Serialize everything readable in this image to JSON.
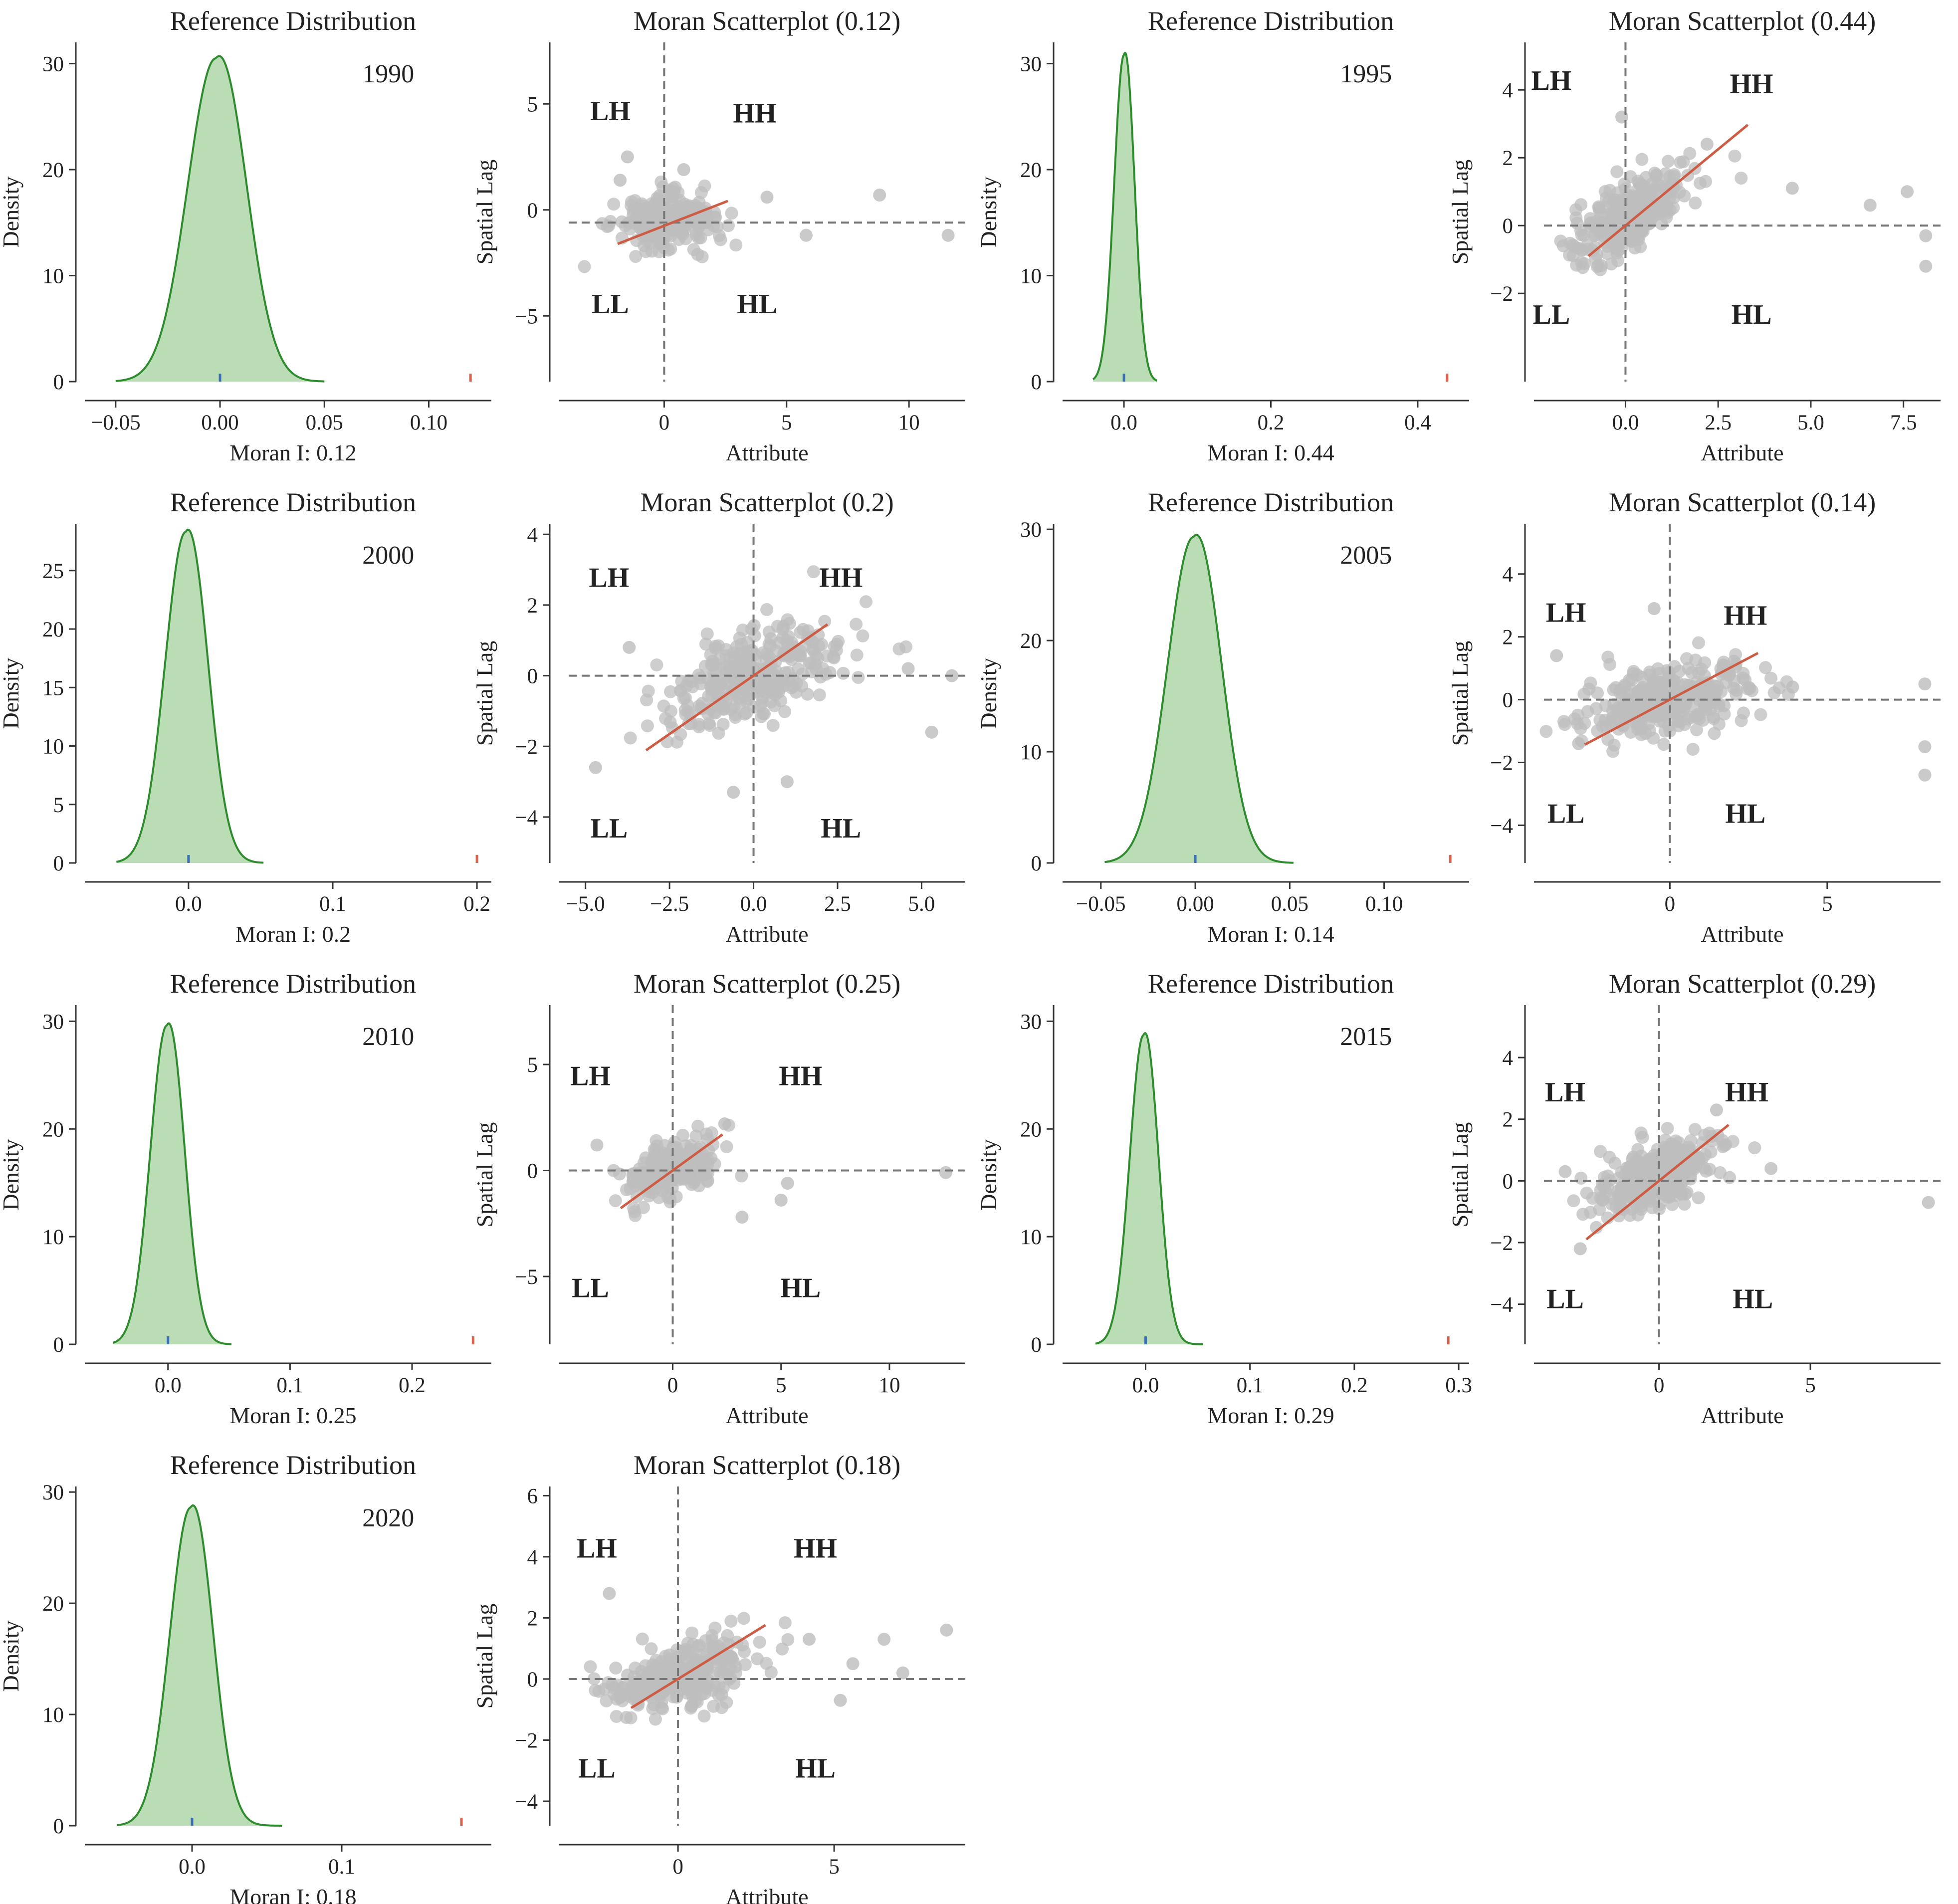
{
  "figure": {
    "colors": {
      "kde_line": "#2e8b2e",
      "kde_fill": "#a9d5a3",
      "observed_marker": "#d9634e",
      "expected_marker": "#3b6fb6",
      "scatter_point": "#bdbdbd",
      "regression_line": "#cd5c45",
      "axis": "#333333",
      "reference_line": "#777777"
    },
    "quadrant_labels": [
      "LH",
      "HH",
      "LL",
      "HL"
    ]
  },
  "chart_data": [
    {
      "type": "area",
      "panel": "reference-distribution",
      "title": "Reference Distribution",
      "year": "1990",
      "xlabel": "Moran I: 0.12",
      "ylabel": "Density",
      "xlim": [
        -0.06,
        0.13
      ],
      "ylim": [
        0,
        32
      ],
      "xticks": [
        {
          "v": -0.05,
          "label": "−0.05"
        },
        {
          "v": 0.0,
          "label": "0.00"
        },
        {
          "v": 0.05,
          "label": "0.05"
        },
        {
          "v": 0.1,
          "label": "0.10"
        }
      ],
      "yticks": [
        {
          "v": 0,
          "label": "0"
        },
        {
          "v": 10,
          "label": "10"
        },
        {
          "v": 20,
          "label": "20"
        },
        {
          "v": 30,
          "label": "30"
        }
      ],
      "kde": {
        "mean": -0.002,
        "sd": 0.0135,
        "peak": 30.5,
        "range": [
          -0.05,
          0.05
        ]
      },
      "observed": 0.12,
      "expected": 0.0
    },
    {
      "type": "scatter",
      "panel": "moran-scatterplot",
      "title": "Moran Scatterplot (0.12)",
      "xlabel": "Attribute",
      "ylabel": "Spatial Lag",
      "xlim": [
        -3.9,
        12.3
      ],
      "ylim": [
        -8.1,
        7.9
      ],
      "xticks": [
        {
          "v": 0,
          "label": "0"
        },
        {
          "v": 5,
          "label": "5"
        },
        {
          "v": 10,
          "label": "10"
        }
      ],
      "yticks": [
        {
          "v": -5,
          "label": "−5"
        },
        {
          "v": 0,
          "label": "0"
        },
        {
          "v": 5,
          "label": "5"
        }
      ],
      "vline": 0,
      "hline": -0.6,
      "regression": {
        "x0": -1.9,
        "x1": 2.6,
        "slope": 0.45,
        "intercept": -0.75
      },
      "cluster": {
        "n": 220,
        "mx": 0,
        "sx": 1.0,
        "my": -0.6,
        "sy": 0.65,
        "slope": 0.1
      },
      "outliers": [
        [
          8.8,
          0.7
        ],
        [
          11.6,
          -1.2
        ],
        [
          5.8,
          -1.2
        ],
        [
          4.2,
          0.6
        ],
        [
          -1.5,
          2.5
        ],
        [
          0.8,
          1.9
        ],
        [
          -1.8,
          1.4
        ]
      ],
      "quadrant_positions": {
        "LH": [
          -2.2,
          4.7
        ],
        "HH": [
          3.7,
          4.6
        ],
        "LL": [
          -2.2,
          -4.4
        ],
        "HL": [
          3.8,
          -4.4
        ]
      }
    },
    {
      "type": "area",
      "panel": "reference-distribution",
      "title": "Reference Distribution",
      "year": "1995",
      "xlabel": "Moran I: 0.44",
      "ylabel": "Density",
      "xlim": [
        -0.07,
        0.47
      ],
      "ylim": [
        0,
        32
      ],
      "xticks": [
        {
          "v": 0.0,
          "label": "0.0"
        },
        {
          "v": 0.2,
          "label": "0.2"
        },
        {
          "v": 0.4,
          "label": "0.4"
        }
      ],
      "yticks": [
        {
          "v": 0,
          "label": "0"
        },
        {
          "v": 10,
          "label": "10"
        },
        {
          "v": 20,
          "label": "20"
        },
        {
          "v": 30,
          "label": "30"
        }
      ],
      "kde": {
        "mean": 0.0,
        "sd": 0.0133,
        "peak": 30.8,
        "range": [
          -0.042,
          0.045
        ]
      },
      "observed": 0.44,
      "expected": 0.0
    },
    {
      "type": "scatter",
      "panel": "moran-scatterplot",
      "title": "Moran Scatterplot (0.44)",
      "xlabel": "Attribute",
      "ylabel": "Spatial Lag",
      "xlim": [
        -2.2,
        8.5
      ],
      "ylim": [
        -4.6,
        5.4
      ],
      "xticks": [
        {
          "v": 0.0,
          "label": "0.0"
        },
        {
          "v": 2.5,
          "label": "2.5"
        },
        {
          "v": 5.0,
          "label": "5.0"
        },
        {
          "v": 7.5,
          "label": "7.5"
        }
      ],
      "yticks": [
        {
          "v": -2,
          "label": "−2"
        },
        {
          "v": 0,
          "label": "0"
        },
        {
          "v": 2,
          "label": "2"
        },
        {
          "v": 4,
          "label": "4"
        }
      ],
      "vline": 0,
      "hline": 0,
      "regression": {
        "x0": -1.0,
        "x1": 3.3,
        "slope": 0.9,
        "intercept": 0.0
      },
      "cluster": {
        "n": 300,
        "mx": 0.1,
        "sx": 0.85,
        "my": 0.3,
        "sy": 0.5,
        "slope": 0.55
      },
      "outliers": [
        [
          6.6,
          0.6
        ],
        [
          7.6,
          1.0
        ],
        [
          8.1,
          -0.3
        ],
        [
          8.1,
          -1.2
        ],
        [
          -0.1,
          3.2
        ],
        [
          2.2,
          2.4
        ],
        [
          4.5,
          1.1
        ]
      ],
      "quadrant_positions": {
        "LH": [
          -2.0,
          4.3
        ],
        "HH": [
          3.4,
          4.2
        ],
        "LL": [
          -2.0,
          -2.6
        ],
        "HL": [
          3.4,
          -2.6
        ]
      }
    },
    {
      "type": "area",
      "panel": "reference-distribution",
      "title": "Reference Distribution",
      "year": "2000",
      "xlabel": "Moran I: 0.2",
      "ylabel": "Density",
      "xlim": [
        -0.065,
        0.21
      ],
      "ylim": [
        0,
        29
      ],
      "xticks": [
        {
          "v": 0.0,
          "label": "0.0"
        },
        {
          "v": 0.1,
          "label": "0.1"
        },
        {
          "v": 0.2,
          "label": "0.2"
        }
      ],
      "yticks": [
        {
          "v": 0,
          "label": "0"
        },
        {
          "v": 5,
          "label": "5"
        },
        {
          "v": 10,
          "label": "10"
        },
        {
          "v": 15,
          "label": "15"
        },
        {
          "v": 20,
          "label": "20"
        },
        {
          "v": 25,
          "label": "25"
        }
      ],
      "kde": {
        "mean": -0.002,
        "sd": 0.0142,
        "peak": 28.3,
        "range": [
          -0.05,
          0.052
        ]
      },
      "observed": 0.2,
      "expected": 0.0
    },
    {
      "type": "scatter",
      "panel": "moran-scatterplot",
      "title": "Moran Scatterplot (0.2)",
      "xlabel": "Attribute",
      "ylabel": "Spatial Lag",
      "xlim": [
        -5.5,
        6.3
      ],
      "ylim": [
        -5.3,
        4.3
      ],
      "xticks": [
        {
          "v": -5.0,
          "label": "−5.0"
        },
        {
          "v": -2.5,
          "label": "−2.5"
        },
        {
          "v": 0.0,
          "label": "0.0"
        },
        {
          "v": 2.5,
          "label": "2.5"
        },
        {
          "v": 5.0,
          "label": "5.0"
        }
      ],
      "yticks": [
        {
          "v": -4,
          "label": "−4"
        },
        {
          "v": -2,
          "label": "−2"
        },
        {
          "v": 0,
          "label": "0"
        },
        {
          "v": 2,
          "label": "2"
        },
        {
          "v": 4,
          "label": "4"
        }
      ],
      "vline": 0,
      "hline": 0,
      "regression": {
        "x0": -3.2,
        "x1": 2.2,
        "slope": 0.66,
        "intercept": 0.0
      },
      "cluster": {
        "n": 320,
        "mx": 0,
        "sx": 1.4,
        "my": 0,
        "sy": 0.6,
        "slope": 0.3
      },
      "outliers": [
        [
          -4.7,
          -2.6
        ],
        [
          5.9,
          0.0
        ],
        [
          5.3,
          -1.6
        ],
        [
          -0.6,
          -3.3
        ],
        [
          1.0,
          -3.0
        ],
        [
          4.6,
          0.2
        ],
        [
          -3.7,
          0.8
        ]
      ],
      "quadrant_positions": {
        "LH": [
          -4.3,
          2.8
        ],
        "HH": [
          2.6,
          2.8
        ],
        "LL": [
          -4.3,
          -4.3
        ],
        "HL": [
          2.6,
          -4.3
        ]
      }
    },
    {
      "type": "area",
      "panel": "reference-distribution",
      "title": "Reference Distribution",
      "year": "2005",
      "xlabel": "Moran I: 0.14",
      "ylabel": "Density",
      "xlim": [
        -0.065,
        0.145
      ],
      "ylim": [
        0,
        30.5
      ],
      "xticks": [
        {
          "v": -0.05,
          "label": "−0.05"
        },
        {
          "v": 0.0,
          "label": "0.00"
        },
        {
          "v": 0.05,
          "label": "0.05"
        },
        {
          "v": 0.1,
          "label": "0.10"
        }
      ],
      "yticks": [
        {
          "v": 0,
          "label": "0"
        },
        {
          "v": 10,
          "label": "10"
        },
        {
          "v": 20,
          "label": "20"
        },
        {
          "v": 30,
          "label": "30"
        }
      ],
      "kde": {
        "mean": -0.001,
        "sd": 0.0137,
        "peak": 29.3,
        "range": [
          -0.048,
          0.052
        ]
      },
      "observed": 0.135,
      "expected": 0.0
    },
    {
      "type": "scatter",
      "panel": "moran-scatterplot",
      "title": "Moran Scatterplot (0.14)",
      "xlabel": "Attribute",
      "ylabel": "Spatial Lag",
      "xlim": [
        -4.0,
        8.6
      ],
      "ylim": [
        -5.2,
        5.6
      ],
      "xticks": [
        {
          "v": 0,
          "label": "0"
        },
        {
          "v": 5,
          "label": "5"
        }
      ],
      "yticks": [
        {
          "v": -4,
          "label": "−4"
        },
        {
          "v": -2,
          "label": "−2"
        },
        {
          "v": 0,
          "label": "0"
        },
        {
          "v": 2,
          "label": "2"
        },
        {
          "v": 4,
          "label": "4"
        }
      ],
      "vline": 0,
      "hline": 0,
      "regression": {
        "x0": -2.7,
        "x1": 2.8,
        "slope": 0.53,
        "intercept": 0.0
      },
      "cluster": {
        "n": 320,
        "mx": 0,
        "sx": 1.25,
        "my": 0,
        "sy": 0.55,
        "slope": 0.2
      },
      "outliers": [
        [
          8.1,
          0.5
        ],
        [
          8.1,
          -1.5
        ],
        [
          8.1,
          -2.4
        ],
        [
          -0.5,
          2.9
        ],
        [
          -3.6,
          1.4
        ],
        [
          3.9,
          0.4
        ],
        [
          -2.9,
          -1.4
        ]
      ],
      "quadrant_positions": {
        "LH": [
          -3.3,
          2.8
        ],
        "HH": [
          2.4,
          2.7
        ],
        "LL": [
          -3.3,
          -3.6
        ],
        "HL": [
          2.4,
          -3.6
        ]
      }
    },
    {
      "type": "area",
      "panel": "reference-distribution",
      "title": "Reference Distribution",
      "year": "2010",
      "xlabel": "Moran I: 0.25",
      "ylabel": "Density",
      "xlim": [
        -0.06,
        0.265
      ],
      "ylim": [
        0,
        31.5
      ],
      "xticks": [
        {
          "v": 0.0,
          "label": "0.0"
        },
        {
          "v": 0.1,
          "label": "0.1"
        },
        {
          "v": 0.2,
          "label": "0.2"
        }
      ],
      "yticks": [
        {
          "v": 0,
          "label": "0"
        },
        {
          "v": 10,
          "label": "10"
        },
        {
          "v": 20,
          "label": "20"
        },
        {
          "v": 30,
          "label": "30"
        }
      ],
      "kde": {
        "mean": -0.001,
        "sd": 0.0135,
        "peak": 29.6,
        "range": [
          -0.045,
          0.052
        ]
      },
      "observed": 0.25,
      "expected": 0.0
    },
    {
      "type": "scatter",
      "panel": "moran-scatterplot",
      "title": "Moran Scatterplot (0.25)",
      "xlabel": "Attribute",
      "ylabel": "Spatial Lag",
      "xlim": [
        -4.8,
        13.5
      ],
      "ylim": [
        -8.2,
        7.8
      ],
      "xticks": [
        {
          "v": 0,
          "label": "0"
        },
        {
          "v": 5,
          "label": "5"
        },
        {
          "v": 10,
          "label": "10"
        }
      ],
      "yticks": [
        {
          "v": -5,
          "label": "−5"
        },
        {
          "v": 0,
          "label": "0"
        },
        {
          "v": 5,
          "label": "5"
        }
      ],
      "vline": 0,
      "hline": 0,
      "regression": {
        "x0": -2.4,
        "x1": 2.3,
        "slope": 0.74,
        "intercept": 0.0
      },
      "cluster": {
        "n": 200,
        "mx": 0,
        "sx": 1.1,
        "my": 0,
        "sy": 0.65,
        "slope": 0.35
      },
      "outliers": [
        [
          12.6,
          -0.1
        ],
        [
          5.0,
          -1.4
        ],
        [
          5.3,
          -0.6
        ],
        [
          -3.5,
          1.2
        ],
        [
          2.4,
          2.2
        ],
        [
          3.2,
          -2.2
        ]
      ],
      "quadrant_positions": {
        "LH": [
          -3.8,
          4.5
        ],
        "HH": [
          5.9,
          4.5
        ],
        "LL": [
          -3.8,
          -5.5
        ],
        "HL": [
          5.9,
          -5.5
        ]
      }
    },
    {
      "type": "area",
      "panel": "reference-distribution",
      "title": "Reference Distribution",
      "year": "2015",
      "xlabel": "Moran I: 0.29",
      "ylabel": "Density",
      "xlim": [
        -0.07,
        0.31
      ],
      "ylim": [
        0,
        31.5
      ],
      "xticks": [
        {
          "v": 0.0,
          "label": "0.0"
        },
        {
          "v": 0.1,
          "label": "0.1"
        },
        {
          "v": 0.2,
          "label": "0.2"
        },
        {
          "v": 0.3,
          "label": "0.3"
        }
      ],
      "yticks": [
        {
          "v": 0,
          "label": "0"
        },
        {
          "v": 10,
          "label": "10"
        },
        {
          "v": 20,
          "label": "20"
        },
        {
          "v": 30,
          "label": "30"
        }
      ],
      "kde": {
        "mean": -0.002,
        "sd": 0.0132,
        "peak": 28.7,
        "range": [
          -0.048,
          0.055
        ]
      },
      "observed": 0.29,
      "expected": 0.0
    },
    {
      "type": "scatter",
      "panel": "moran-scatterplot",
      "title": "Moran Scatterplot (0.29)",
      "xlabel": "Attribute",
      "ylabel": "Spatial Lag",
      "xlim": [
        -3.8,
        9.3
      ],
      "ylim": [
        -5.3,
        5.7
      ],
      "xticks": [
        {
          "v": 0,
          "label": "0"
        },
        {
          "v": 5,
          "label": "5"
        }
      ],
      "yticks": [
        {
          "v": -4,
          "label": "−4"
        },
        {
          "v": -2,
          "label": "−2"
        },
        {
          "v": 0,
          "label": "0"
        },
        {
          "v": 2,
          "label": "2"
        },
        {
          "v": 4,
          "label": "4"
        }
      ],
      "vline": 0,
      "hline": 0,
      "regression": {
        "x0": -2.4,
        "x1": 2.3,
        "slope": 0.79,
        "intercept": 0.0
      },
      "cluster": {
        "n": 300,
        "mx": 0,
        "sx": 1.05,
        "my": 0.2,
        "sy": 0.55,
        "slope": 0.4
      },
      "outliers": [
        [
          8.9,
          -0.7
        ],
        [
          -2.6,
          -2.2
        ],
        [
          1.9,
          2.3
        ],
        [
          3.7,
          0.4
        ],
        [
          -3.1,
          0.3
        ]
      ],
      "quadrant_positions": {
        "LH": [
          -3.1,
          2.9
        ],
        "HH": [
          2.9,
          2.9
        ],
        "LL": [
          -3.1,
          -3.8
        ],
        "HL": [
          3.1,
          -3.8
        ]
      }
    },
    {
      "type": "area",
      "panel": "reference-distribution",
      "title": "Reference Distribution",
      "year": "2020",
      "xlabel": "Moran I: 0.18",
      "ylabel": "Density",
      "xlim": [
        -0.065,
        0.2
      ],
      "ylim": [
        0,
        30.5
      ],
      "xticks": [
        {
          "v": 0.0,
          "label": "0.0"
        },
        {
          "v": 0.1,
          "label": "0.1"
        }
      ],
      "yticks": [
        {
          "v": 0,
          "label": "0"
        },
        {
          "v": 10,
          "label": "10"
        },
        {
          "v": 20,
          "label": "20"
        },
        {
          "v": 30,
          "label": "30"
        }
      ],
      "kde": {
        "mean": -0.001,
        "sd": 0.0138,
        "peak": 28.6,
        "range": [
          -0.05,
          0.06
        ]
      },
      "observed": 0.18,
      "expected": 0.0
    },
    {
      "type": "scatter",
      "panel": "moran-scatterplot",
      "title": "Moran Scatterplot (0.18)",
      "xlabel": "Attribute",
      "ylabel": "Spatial Lag",
      "xlim": [
        -3.5,
        9.2
      ],
      "ylim": [
        -4.8,
        6.3
      ],
      "xticks": [
        {
          "v": 0,
          "label": "0"
        },
        {
          "v": 5,
          "label": "5"
        }
      ],
      "yticks": [
        {
          "v": -4,
          "label": "−4"
        },
        {
          "v": -2,
          "label": "−2"
        },
        {
          "v": 0,
          "label": "0"
        },
        {
          "v": 2,
          "label": "2"
        },
        {
          "v": 4,
          "label": "4"
        },
        {
          "v": 6,
          "label": "6"
        }
      ],
      "vline": 0,
      "hline": 0,
      "regression": {
        "x0": -1.5,
        "x1": 2.8,
        "slope": 0.63,
        "intercept": 0.0
      },
      "cluster": {
        "n": 300,
        "mx": 0,
        "sx": 1.15,
        "my": 0.1,
        "sy": 0.55,
        "slope": 0.3
      },
      "outliers": [
        [
          8.6,
          1.6
        ],
        [
          6.6,
          1.3
        ],
        [
          7.2,
          0.2
        ],
        [
          5.6,
          0.5
        ],
        [
          -2.2,
          2.8
        ],
        [
          5.2,
          -0.7
        ],
        [
          4.2,
          1.3
        ]
      ],
      "quadrant_positions": {
        "LH": [
          -2.6,
          4.3
        ],
        "HH": [
          4.4,
          4.3
        ],
        "LL": [
          -2.6,
          -2.9
        ],
        "HL": [
          4.4,
          -2.9
        ]
      }
    }
  ]
}
